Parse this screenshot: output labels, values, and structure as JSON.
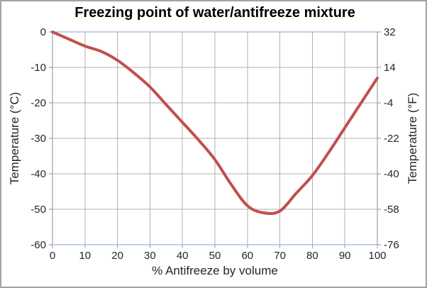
{
  "chart_data": {
    "type": "line",
    "title": "Freezing point of water/antifreeze mixture",
    "xlabel": "% Antifreeze by volume",
    "ylabel_left": "Temperature (°C)",
    "ylabel_right": "Temperature (°F)",
    "x": [
      0,
      5,
      10,
      15,
      20,
      25,
      30,
      35,
      40,
      45,
      50,
      55,
      60,
      65,
      70,
      75,
      80,
      85,
      90,
      95,
      100
    ],
    "series": [
      {
        "name": "freezing-point-curve",
        "values": [
          0,
          -2,
          -4,
          -5.5,
          -8,
          -11.5,
          -15.5,
          -20.5,
          -25.5,
          -30.5,
          -36,
          -43,
          -49,
          -51,
          -50.5,
          -45.5,
          -40.5,
          -34,
          -27,
          -20,
          -13
        ]
      }
    ],
    "xlim": [
      0,
      100
    ],
    "ylim_left": [
      -60,
      0
    ],
    "ylim_right": [
      -76,
      32
    ],
    "x_ticks": [
      0,
      10,
      20,
      30,
      40,
      50,
      60,
      70,
      80,
      90,
      100
    ],
    "y_ticks_left": [
      0,
      -10,
      -20,
      -30,
      -40,
      -50,
      -60
    ],
    "y_ticks_right": [
      32,
      14,
      -4,
      -22,
      -40,
      -58,
      -76
    ],
    "grid": true,
    "legend": "none",
    "colors": {
      "line": "#c0504d",
      "gridline": "#b0b0b0",
      "axis_gray": "#8c8c8c",
      "axis_blue": "#7ea6d8",
      "text": "#262626",
      "title": "#000000"
    }
  }
}
